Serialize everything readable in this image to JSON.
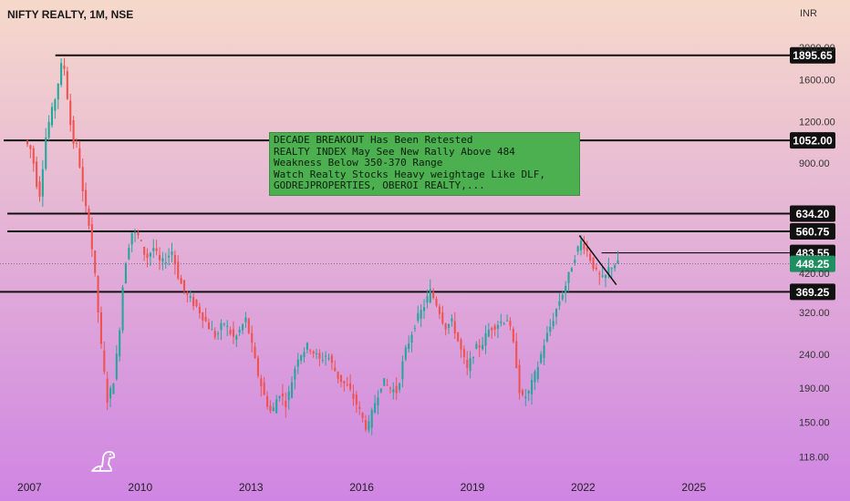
{
  "header": {
    "title": "NIFTY REALTY, 1M, NSE",
    "currency": "INR"
  },
  "note_lines": [
    "DECADE BREAKOUT Has Been Retested",
    "REALTY INDEX May See New Rally Above 484",
    "Weakness Below 350-370 Range",
    "Watch Realty Stocks Heavy weightage Like DLF,",
    "GODREJPROPERTIES, OBEROI REALTY,..."
  ],
  "colors": {
    "up": "#26a69a",
    "down": "#ef5350",
    "level_line": "#111111",
    "label_dark": "#111111",
    "label_current": "#1f8f62",
    "note_bg": "#4caf50",
    "bg_top": "#f6d9cb",
    "bg_bottom": "#cf85e3"
  },
  "logo_icon": "dinosaur-icon",
  "chart_data": {
    "type": "candlestick",
    "title": "NIFTY REALTY, 1M, NSE",
    "y_scale": "log",
    "y_range": [
      105,
      2300
    ],
    "x_range": [
      2006.2,
      2027.6
    ],
    "y_ticks": [
      "2000.00",
      "1600.00",
      "1200.00",
      "900.00",
      "420.00",
      "320.00",
      "240.00",
      "190.00",
      "150.00",
      "118.00"
    ],
    "x_ticks": [
      "2007",
      "2010",
      "2013",
      "2016",
      "2019",
      "2022",
      "2025"
    ],
    "levels": [
      {
        "value": 1895.65,
        "label": "1895.65",
        "from": 2007.7
      },
      {
        "value": 1052.0,
        "label": "1052.00",
        "from": 2006.3
      },
      {
        "value": 634.2,
        "label": "634.20",
        "from": 2006.4
      },
      {
        "value": 560.75,
        "label": "560.75",
        "from": 2006.4
      },
      {
        "value": 369.25,
        "label": "369.25",
        "from": 2006.2
      }
    ],
    "resistance": {
      "value": 483.55,
      "label": "483.55",
      "from": 2022.5
    },
    "current": {
      "value": 448.25,
      "label": "448.25"
    },
    "trendline": {
      "from": [
        2021.9,
        545
      ],
      "to": [
        2022.9,
        388
      ]
    },
    "price_path": [
      [
        2006.9,
        1050
      ],
      [
        2007.1,
        980
      ],
      [
        2007.3,
        700
      ],
      [
        2007.5,
        1120
      ],
      [
        2007.7,
        1350
      ],
      [
        2007.85,
        1640
      ],
      [
        2007.95,
        1880
      ],
      [
        2008.05,
        1480
      ],
      [
        2008.2,
        1050
      ],
      [
        2008.35,
        1000
      ],
      [
        2008.5,
        700
      ],
      [
        2008.65,
        600
      ],
      [
        2008.8,
        430
      ],
      [
        2009.0,
        240
      ],
      [
        2009.15,
        175
      ],
      [
        2009.3,
        195
      ],
      [
        2009.45,
        260
      ],
      [
        2009.6,
        430
      ],
      [
        2009.8,
        560
      ],
      [
        2010.0,
        540
      ],
      [
        2010.2,
        465
      ],
      [
        2010.4,
        500
      ],
      [
        2010.6,
        445
      ],
      [
        2010.9,
        490
      ],
      [
        2011.1,
        400
      ],
      [
        2011.3,
        360
      ],
      [
        2011.6,
        330
      ],
      [
        2011.9,
        290
      ],
      [
        2012.1,
        270
      ],
      [
        2012.3,
        300
      ],
      [
        2012.6,
        265
      ],
      [
        2012.9,
        305
      ],
      [
        2013.0,
        275
      ],
      [
        2013.2,
        215
      ],
      [
        2013.4,
        180
      ],
      [
        2013.6,
        158
      ],
      [
        2013.8,
        185
      ],
      [
        2014.0,
        170
      ],
      [
        2014.3,
        235
      ],
      [
        2014.6,
        255
      ],
      [
        2014.9,
        230
      ],
      [
        2015.1,
        240
      ],
      [
        2015.4,
        205
      ],
      [
        2015.7,
        188
      ],
      [
        2015.9,
        170
      ],
      [
        2016.1,
        150
      ],
      [
        2016.2,
        142
      ],
      [
        2016.4,
        172
      ],
      [
        2016.6,
        200
      ],
      [
        2016.8,
        190
      ],
      [
        2017.0,
        185
      ],
      [
        2017.2,
        240
      ],
      [
        2017.5,
        300
      ],
      [
        2017.7,
        330
      ],
      [
        2017.9,
        370
      ],
      [
        2018.1,
        335
      ],
      [
        2018.3,
        290
      ],
      [
        2018.5,
        300
      ],
      [
        2018.7,
        252
      ],
      [
        2018.9,
        215
      ],
      [
        2019.1,
        248
      ],
      [
        2019.3,
        258
      ],
      [
        2019.5,
        286
      ],
      [
        2019.8,
        300
      ],
      [
        2020.0,
        308
      ],
      [
        2020.2,
        240
      ],
      [
        2020.35,
        175
      ],
      [
        2020.55,
        182
      ],
      [
        2020.8,
        218
      ],
      [
        2021.0,
        262
      ],
      [
        2021.2,
        300
      ],
      [
        2021.4,
        348
      ],
      [
        2021.6,
        395
      ],
      [
        2021.8,
        470
      ],
      [
        2022.0,
        528
      ],
      [
        2022.2,
        475
      ],
      [
        2022.4,
        420
      ],
      [
        2022.6,
        398
      ],
      [
        2022.75,
        438
      ],
      [
        2022.9,
        448
      ]
    ]
  }
}
